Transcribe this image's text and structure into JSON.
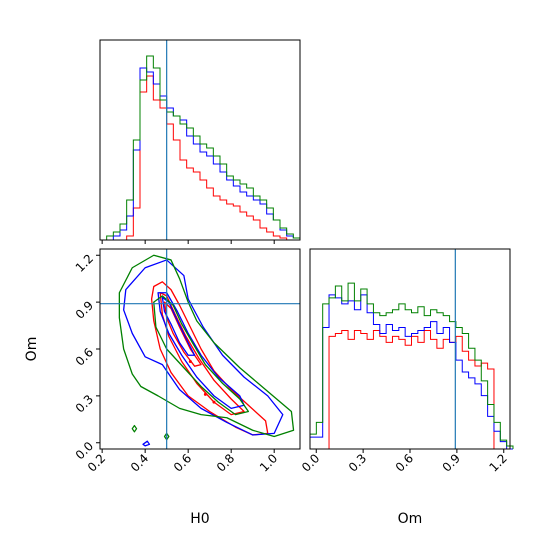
{
  "chart_data": {
    "type": "corner",
    "parameters": [
      "H0",
      "Om"
    ],
    "truth": {
      "H0": 0.5,
      "Om": 0.89
    },
    "colors": {
      "red": "#ff0000",
      "blue": "#0000ff",
      "green": "#008000",
      "truth": "#1f77b4"
    },
    "series_colors": [
      "red",
      "blue",
      "green"
    ],
    "axes": {
      "H0": {
        "range": [
          0.19,
          1.12
        ],
        "ticks": [
          0.2,
          0.4,
          0.6,
          0.8,
          1.0
        ],
        "tick_labels": [
          "0.2",
          "0.4",
          "0.6",
          "0.8",
          "1.0"
        ]
      },
      "Om": {
        "range": [
          -0.04,
          1.24
        ],
        "ticks": [
          0.0,
          0.3,
          0.6,
          0.9,
          1.2
        ],
        "tick_labels": [
          "0.0",
          "0.3",
          "0.6",
          "0.9",
          "1.2"
        ]
      }
    },
    "H0_hist": {
      "bin_start": 0.19,
      "bin_width": 0.031,
      "ymax": 1.0,
      "series": [
        {
          "color": "red",
          "values": [
            0,
            0,
            0,
            0,
            0.02,
            0.16,
            0.74,
            0.82,
            0.7,
            0.66,
            0.58,
            0.5,
            0.4,
            0.36,
            0.34,
            0.3,
            0.26,
            0.22,
            0.2,
            0.18,
            0.17,
            0.14,
            0.12,
            0.1,
            0.06,
            0.04,
            0.02,
            0.01,
            0,
            0
          ]
        },
        {
          "color": "blue",
          "values": [
            0,
            0,
            0.02,
            0.05,
            0.12,
            0.45,
            0.86,
            0.84,
            0.78,
            0.72,
            0.66,
            0.62,
            0.6,
            0.52,
            0.48,
            0.44,
            0.42,
            0.38,
            0.34,
            0.3,
            0.27,
            0.24,
            0.22,
            0.2,
            0.18,
            0.13,
            0.1,
            0.05,
            0.02,
            0.01
          ]
        },
        {
          "color": "green",
          "values": [
            0,
            0.02,
            0.04,
            0.08,
            0.2,
            0.5,
            0.8,
            0.92,
            0.86,
            0.7,
            0.64,
            0.62,
            0.58,
            0.56,
            0.52,
            0.48,
            0.46,
            0.42,
            0.38,
            0.32,
            0.3,
            0.28,
            0.26,
            0.22,
            0.2,
            0.16,
            0.1,
            0.06,
            0.03,
            0.01
          ]
        }
      ]
    },
    "Om_hist": {
      "bin_start": -0.04,
      "bin_width": 0.0406,
      "ymax": 1.35,
      "series": [
        {
          "color": "red",
          "values": [
            0,
            0,
            0,
            0.76,
            0.78,
            0.8,
            0.74,
            0.8,
            0.78,
            0.74,
            0.8,
            0.76,
            0.72,
            0.76,
            0.74,
            0.7,
            0.76,
            0.72,
            0.8,
            0.74,
            0.68,
            0.74,
            0.72,
            0.76,
            0.66,
            0.6,
            0.56,
            0.58,
            0.54,
            0,
            0,
            0
          ]
        },
        {
          "color": "blue",
          "values": [
            0.08,
            0.08,
            0.82,
            1.04,
            1.02,
            0.98,
            1.0,
            0.94,
            1.04,
            0.92,
            0.84,
            0.78,
            0.84,
            0.8,
            0.82,
            0.76,
            0.78,
            0.8,
            0.82,
            0.86,
            0.78,
            0.82,
            0.72,
            0.6,
            0.52,
            0.48,
            0.44,
            0.36,
            0.22,
            0.12,
            0.05,
            0
          ]
        },
        {
          "color": "green",
          "values": [
            0.1,
            0.18,
            0.98,
            1.02,
            1.1,
            1.0,
            1.12,
            1.0,
            1.08,
            0.98,
            0.92,
            0.9,
            0.92,
            0.94,
            0.98,
            0.94,
            0.92,
            0.96,
            0.9,
            0.94,
            0.92,
            0.9,
            0.86,
            0.82,
            0.78,
            0.68,
            0.6,
            0.46,
            0.3,
            0.18,
            0.06,
            0.02
          ]
        }
      ]
    },
    "contours": [
      {
        "color": "red",
        "points": [
          [
            0.44,
            1.0
          ],
          [
            0.48,
            1.03
          ],
          [
            0.52,
            0.98
          ],
          [
            0.56,
            0.88
          ],
          [
            0.61,
            0.74
          ],
          [
            0.66,
            0.6
          ],
          [
            0.72,
            0.46
          ],
          [
            0.8,
            0.34
          ],
          [
            0.88,
            0.24
          ],
          [
            0.96,
            0.14
          ],
          [
            0.97,
            0.06
          ],
          [
            0.9,
            0.05
          ],
          [
            0.82,
            0.1
          ],
          [
            0.7,
            0.2
          ],
          [
            0.6,
            0.3
          ],
          [
            0.52,
            0.45
          ],
          [
            0.47,
            0.6
          ],
          [
            0.44,
            0.78
          ],
          [
            0.43,
            0.92
          ]
        ]
      },
      {
        "color": "red",
        "points": [
          [
            0.47,
            0.96
          ],
          [
            0.5,
            0.94
          ],
          [
            0.54,
            0.82
          ],
          [
            0.59,
            0.68
          ],
          [
            0.65,
            0.54
          ],
          [
            0.72,
            0.4
          ],
          [
            0.8,
            0.28
          ],
          [
            0.86,
            0.2
          ],
          [
            0.8,
            0.18
          ],
          [
            0.72,
            0.26
          ],
          [
            0.64,
            0.38
          ],
          [
            0.57,
            0.52
          ],
          [
            0.51,
            0.68
          ],
          [
            0.48,
            0.82
          ]
        ]
      },
      {
        "color": "red",
        "points": [
          [
            0.49,
            0.9
          ],
          [
            0.52,
            0.86
          ],
          [
            0.56,
            0.74
          ],
          [
            0.61,
            0.6
          ],
          [
            0.66,
            0.5
          ],
          [
            0.63,
            0.49
          ],
          [
            0.58,
            0.58
          ],
          [
            0.53,
            0.7
          ],
          [
            0.5,
            0.8
          ]
        ]
      },
      {
        "color": "blue",
        "points": [
          [
            0.31,
            0.98
          ],
          [
            0.4,
            1.12
          ],
          [
            0.5,
            1.17
          ],
          [
            0.58,
            1.07
          ],
          [
            0.6,
            0.92
          ],
          [
            0.67,
            0.74
          ],
          [
            0.76,
            0.56
          ],
          [
            0.86,
            0.42
          ],
          [
            0.97,
            0.3
          ],
          [
            1.04,
            0.18
          ],
          [
            1.0,
            0.06
          ],
          [
            0.9,
            0.05
          ],
          [
            0.78,
            0.13
          ],
          [
            0.66,
            0.22
          ],
          [
            0.56,
            0.34
          ],
          [
            0.48,
            0.5
          ],
          [
            0.4,
            0.55
          ],
          [
            0.34,
            0.7
          ],
          [
            0.3,
            0.85
          ]
        ]
      },
      {
        "color": "blue",
        "points": [
          [
            0.46,
            0.96
          ],
          [
            0.5,
            0.96
          ],
          [
            0.55,
            0.84
          ],
          [
            0.6,
            0.7
          ],
          [
            0.66,
            0.56
          ],
          [
            0.74,
            0.42
          ],
          [
            0.84,
            0.3
          ],
          [
            0.86,
            0.24
          ],
          [
            0.8,
            0.22
          ],
          [
            0.72,
            0.3
          ],
          [
            0.64,
            0.42
          ],
          [
            0.57,
            0.56
          ],
          [
            0.51,
            0.7
          ],
          [
            0.47,
            0.84
          ]
        ]
      },
      {
        "color": "blue",
        "points": [
          [
            0.48,
            0.93
          ],
          [
            0.51,
            0.9
          ],
          [
            0.55,
            0.78
          ],
          [
            0.6,
            0.64
          ],
          [
            0.63,
            0.56
          ],
          [
            0.6,
            0.56
          ],
          [
            0.56,
            0.64
          ],
          [
            0.52,
            0.76
          ],
          [
            0.49,
            0.84
          ]
        ]
      },
      {
        "color": "green",
        "points": [
          [
            0.28,
            0.96
          ],
          [
            0.34,
            1.12
          ],
          [
            0.44,
            1.2
          ],
          [
            0.52,
            1.17
          ],
          [
            0.56,
            1.05
          ],
          [
            0.6,
            0.9
          ],
          [
            0.64,
            0.78
          ],
          [
            0.72,
            0.64
          ],
          [
            0.84,
            0.48
          ],
          [
            0.96,
            0.34
          ],
          [
            1.08,
            0.2
          ],
          [
            1.09,
            0.08
          ],
          [
            1.0,
            0.04
          ],
          [
            0.9,
            0.08
          ],
          [
            0.78,
            0.16
          ],
          [
            0.66,
            0.18
          ],
          [
            0.56,
            0.22
          ],
          [
            0.46,
            0.3
          ],
          [
            0.38,
            0.36
          ],
          [
            0.34,
            0.44
          ],
          [
            0.3,
            0.6
          ],
          [
            0.28,
            0.8
          ]
        ]
      },
      {
        "color": "green",
        "points": [
          [
            0.44,
            0.9
          ],
          [
            0.48,
            0.94
          ],
          [
            0.53,
            0.88
          ],
          [
            0.57,
            0.76
          ],
          [
            0.62,
            0.64
          ],
          [
            0.68,
            0.5
          ],
          [
            0.76,
            0.38
          ],
          [
            0.84,
            0.28
          ],
          [
            0.88,
            0.2
          ],
          [
            0.82,
            0.18
          ],
          [
            0.74,
            0.26
          ],
          [
            0.66,
            0.36
          ],
          [
            0.58,
            0.48
          ],
          [
            0.5,
            0.6
          ],
          [
            0.45,
            0.74
          ]
        ]
      },
      {
        "color": "green",
        "points": [
          [
            0.34,
            0.09
          ],
          [
            0.35,
            0.11
          ],
          [
            0.36,
            0.09
          ],
          [
            0.35,
            0.07
          ]
        ]
      },
      {
        "color": "green",
        "points": [
          [
            0.49,
            0.04
          ],
          [
            0.5,
            0.06
          ],
          [
            0.51,
            0.04
          ],
          [
            0.5,
            0.02
          ]
        ]
      },
      {
        "color": "blue",
        "points": [
          [
            0.39,
            -0.01
          ],
          [
            0.41,
            0.01
          ],
          [
            0.42,
            -0.01
          ],
          [
            0.4,
            -0.02
          ]
        ]
      }
    ],
    "dots": [
      {
        "color": "red",
        "x": 0.72,
        "y": 0.26
      },
      {
        "color": "red",
        "x": 0.61,
        "y": 0.52
      },
      {
        "color": "red",
        "x": 0.68,
        "y": 0.31
      }
    ]
  }
}
